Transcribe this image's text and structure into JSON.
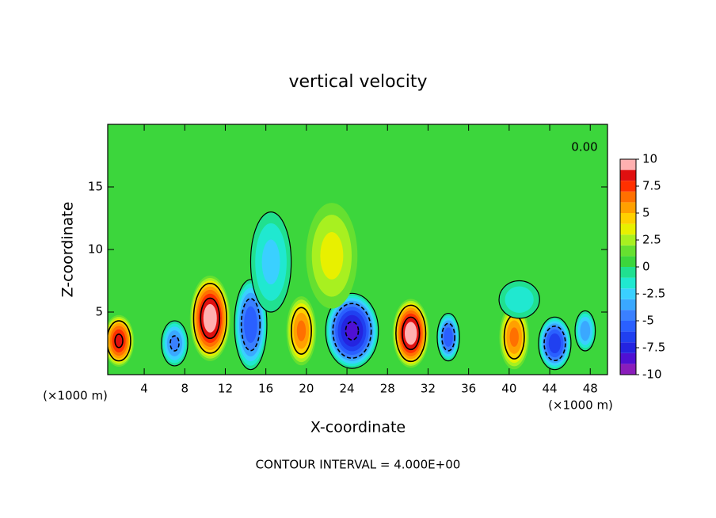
{
  "chart_data": {
    "type": "contour",
    "title": "vertical velocity",
    "x_label": "X-coordinate",
    "y_label": "Z-coordinate",
    "x_unit_labels": [
      "(×1000 m)",
      "(×1000 m)"
    ],
    "contour_label": "0.00",
    "footer": "CONTOUR INTERVAL = 4.000E+00",
    "contour_interval": 4,
    "xlim": [
      0.4,
      49.7
    ],
    "ylim": [
      0,
      20
    ],
    "xticks": [
      4,
      8,
      12,
      16,
      20,
      24,
      28,
      32,
      36,
      40,
      44,
      48
    ],
    "yticks": [
      5,
      10,
      15
    ],
    "colorbar": {
      "clim": [
        -10,
        10
      ],
      "ticks": [
        10,
        7.5,
        5,
        2.5,
        0,
        -2.5,
        -5,
        -7.5,
        -10
      ],
      "colors": [
        "#8a1dbb",
        "#4f10d3",
        "#2424e0",
        "#2040f0",
        "#2a60ff",
        "#3a80ff",
        "#3aa8ff",
        "#3ad0ff",
        "#20e8d0",
        "#20e090",
        "#3cd63c",
        "#66e030",
        "#a8f020",
        "#e8f000",
        "#ffd000",
        "#ffa000",
        "#ff7000",
        "#ff3000",
        "#e01010",
        "#ffb0b0"
      ]
    },
    "features": [
      {
        "x": 1.5,
        "z": 2.7,
        "w": 1.6,
        "h": 2.2,
        "value": 8.5
      },
      {
        "x": 7,
        "z": 2.5,
        "w": 1.3,
        "h": 1.8,
        "value": -4.5
      },
      {
        "x": 10.5,
        "z": 4.5,
        "w": 2.1,
        "h": 3.6,
        "value": 10
      },
      {
        "x": 14.5,
        "z": 4,
        "w": 1.6,
        "h": 3.6,
        "value": -6
      },
      {
        "x": 19.5,
        "z": 3.5,
        "w": 1.6,
        "h": 3,
        "value": 6.5
      },
      {
        "x": 24.5,
        "z": 3.5,
        "w": 2.6,
        "h": 3,
        "value": -8.5
      },
      {
        "x": 30.3,
        "z": 3.3,
        "w": 1.9,
        "h": 2.9,
        "value": 10
      },
      {
        "x": 34,
        "z": 3,
        "w": 1.1,
        "h": 1.9,
        "value": -6
      },
      {
        "x": 40.5,
        "z": 3,
        "w": 1.6,
        "h": 2.8,
        "value": 6.5
      },
      {
        "x": 44.5,
        "z": 2.5,
        "w": 1.6,
        "h": 2.1,
        "value": -7
      },
      {
        "x": 47.5,
        "z": 3.5,
        "w": 1,
        "h": 1.6,
        "value": -4
      },
      {
        "x": 22.5,
        "z": 9.5,
        "w": 3,
        "h": 5,
        "value": 3.5
      },
      {
        "x": 16.5,
        "z": 9,
        "w": 2,
        "h": 4,
        "value": -2.5
      },
      {
        "x": 41,
        "z": 6,
        "w": 2,
        "h": 1.5,
        "value": -2
      }
    ]
  }
}
